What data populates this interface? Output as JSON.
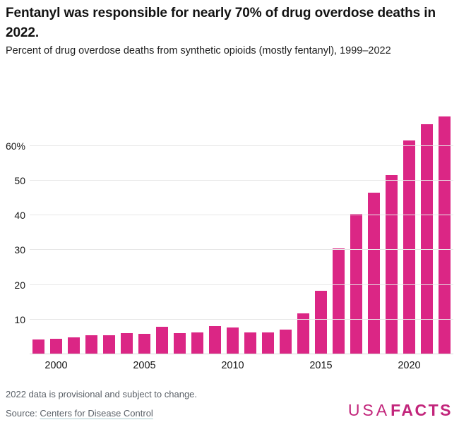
{
  "header": {
    "title": "Fentanyl was responsible for nearly 70% of drug overdose deaths in 2022.",
    "subtitle": "Percent of drug overdose deaths from synthetic opioids (mostly fentanyl), 1999–2022"
  },
  "chart_data": {
    "type": "bar",
    "title": "Fentanyl was responsible for nearly 70% of drug overdose deaths in 2022.",
    "subtitle": "Percent of drug overdose deaths from synthetic opioids (mostly fentanyl), 1999–2022",
    "x": [
      1999,
      2000,
      2001,
      2002,
      2003,
      2004,
      2005,
      2006,
      2007,
      2008,
      2009,
      2010,
      2011,
      2012,
      2013,
      2014,
      2015,
      2016,
      2017,
      2018,
      2019,
      2020,
      2021,
      2022
    ],
    "values": [
      4.3,
      4.5,
      4.9,
      5.5,
      5.4,
      6.1,
      5.8,
      7.9,
      6.1,
      6.3,
      8.1,
      7.8,
      6.4,
      6.3,
      7.1,
      11.8,
      18.3,
      30.5,
      40.5,
      46.5,
      51.5,
      61.6,
      66.2,
      68.4
    ],
    "xlabel": "",
    "ylabel": "Percent of drug overdose deaths",
    "ylim": [
      0,
      71.5
    ],
    "y_ticks": [
      {
        "value": 10,
        "label": "10"
      },
      {
        "value": 20,
        "label": "20"
      },
      {
        "value": 30,
        "label": "30"
      },
      {
        "value": 40,
        "label": "40"
      },
      {
        "value": 50,
        "label": "50"
      },
      {
        "value": 60,
        "label": "60%"
      }
    ],
    "x_tick_years": [
      2000,
      2005,
      2010,
      2015,
      2020
    ],
    "grid": "horizontal",
    "legend": "none",
    "bar_color": "#db2685"
  },
  "footer": {
    "note": "2022 data is provisional and subject to change.",
    "source_prefix": "Source: ",
    "source_link": "Centers for Disease Control",
    "logo_part1": "USA",
    "logo_part2": "FACTS",
    "logo_color": "#c2257b"
  },
  "colors": {
    "bar": "#db2685",
    "gridline": "#e7e7e7",
    "text_dark": "#121212",
    "text_gray": "#5b6168",
    "logo": "#c2257b"
  }
}
